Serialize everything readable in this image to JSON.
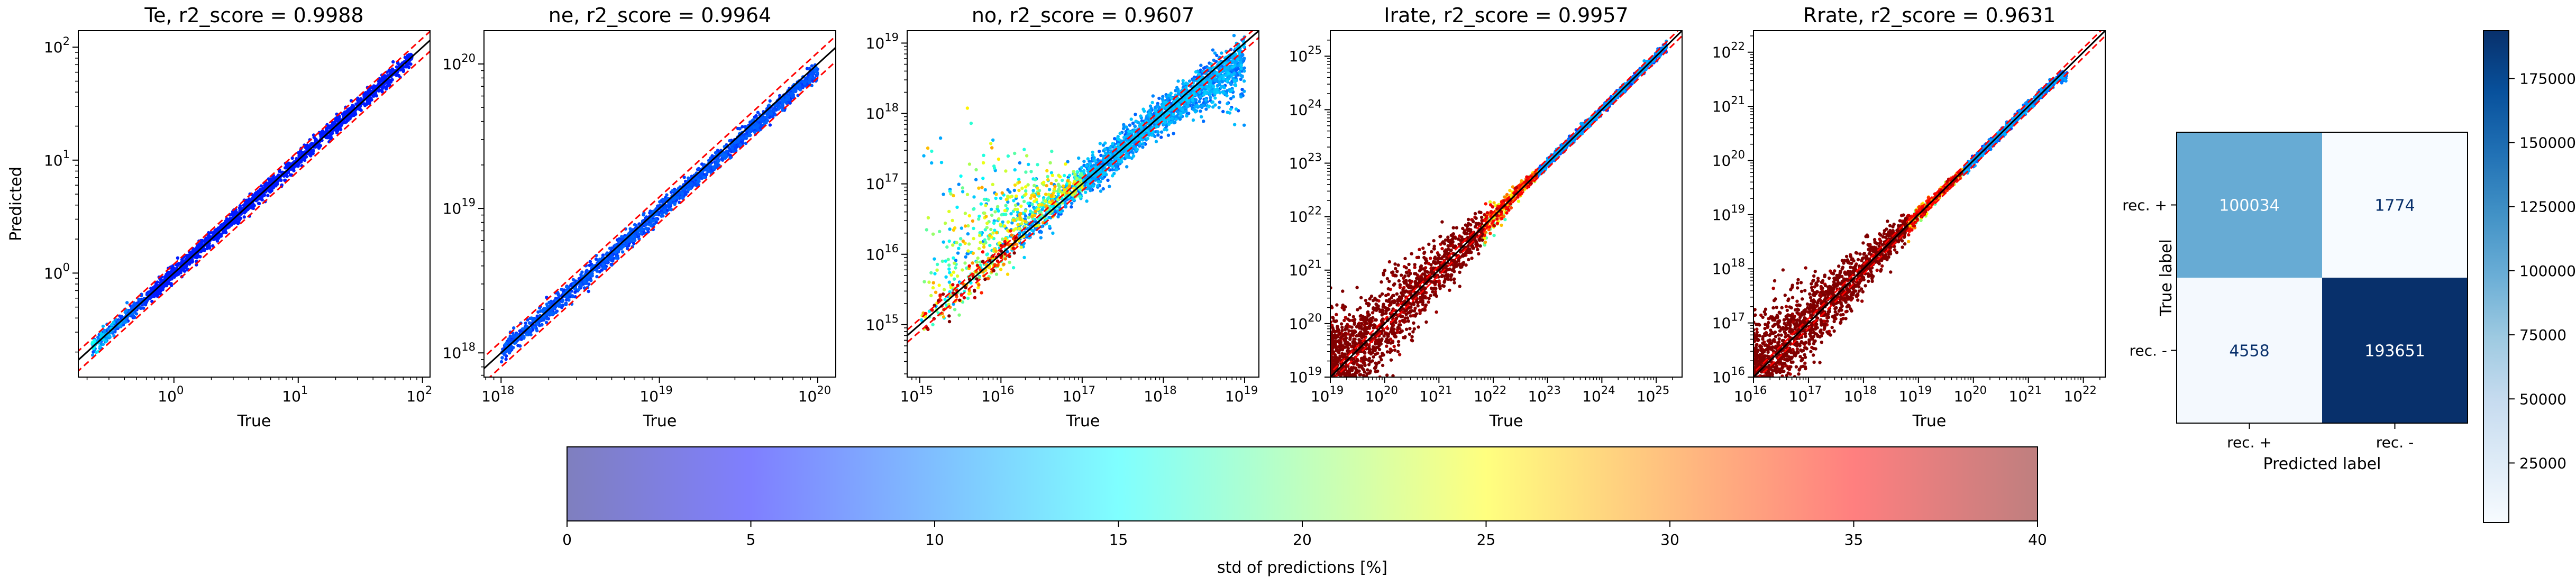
{
  "scatter_panels": [
    {
      "title": "Te, r2_score = 0.9988",
      "xlabel": "True",
      "ylabel": "Predicted",
      "x_tick_labels": [
        {
          "base": "10",
          "exp": "0"
        },
        {
          "base": "10",
          "exp": "1"
        },
        {
          "base": "10",
          "exp": "2"
        }
      ],
      "y_tick_labels": [
        {
          "base": "10",
          "exp": "0"
        },
        {
          "base": "10",
          "exp": "1"
        },
        {
          "base": "10",
          "exp": "2"
        }
      ]
    },
    {
      "title": "ne, r2_score = 0.9964",
      "xlabel": "True",
      "ylabel": "",
      "x_tick_labels": [
        {
          "base": "10",
          "exp": "18"
        },
        {
          "base": "10",
          "exp": "19"
        },
        {
          "base": "10",
          "exp": "20"
        }
      ],
      "y_tick_labels": [
        {
          "base": "10",
          "exp": "18"
        },
        {
          "base": "10",
          "exp": "19"
        },
        {
          "base": "10",
          "exp": "20"
        }
      ]
    },
    {
      "title": "no, r2_score = 0.9607",
      "xlabel": "True",
      "ylabel": "",
      "x_tick_labels": [
        {
          "base": "10",
          "exp": "15"
        },
        {
          "base": "10",
          "exp": "16"
        },
        {
          "base": "10",
          "exp": "17"
        },
        {
          "base": "10",
          "exp": "18"
        },
        {
          "base": "10",
          "exp": "19"
        }
      ],
      "y_tick_labels": [
        {
          "base": "10",
          "exp": "15"
        },
        {
          "base": "10",
          "exp": "16"
        },
        {
          "base": "10",
          "exp": "17"
        },
        {
          "base": "10",
          "exp": "18"
        },
        {
          "base": "10",
          "exp": "19"
        }
      ]
    },
    {
      "title": "Irate, r2_score = 0.9957",
      "xlabel": "True",
      "ylabel": "",
      "x_tick_labels": [
        {
          "base": "10",
          "exp": "19"
        },
        {
          "base": "10",
          "exp": "20"
        },
        {
          "base": "10",
          "exp": "21"
        },
        {
          "base": "10",
          "exp": "22"
        },
        {
          "base": "10",
          "exp": "23"
        },
        {
          "base": "10",
          "exp": "24"
        },
        {
          "base": "10",
          "exp": "25"
        }
      ],
      "y_tick_labels": [
        {
          "base": "10",
          "exp": "19"
        },
        {
          "base": "10",
          "exp": "20"
        },
        {
          "base": "10",
          "exp": "21"
        },
        {
          "base": "10",
          "exp": "22"
        },
        {
          "base": "10",
          "exp": "23"
        },
        {
          "base": "10",
          "exp": "24"
        },
        {
          "base": "10",
          "exp": "25"
        }
      ]
    },
    {
      "title": "Rrate, r2_score = 0.9631",
      "xlabel": "True",
      "ylabel": "",
      "x_tick_labels": [
        {
          "base": "10",
          "exp": "16"
        },
        {
          "base": "10",
          "exp": "17"
        },
        {
          "base": "10",
          "exp": "18"
        },
        {
          "base": "10",
          "exp": "19"
        },
        {
          "base": "10",
          "exp": "20"
        },
        {
          "base": "10",
          "exp": "21"
        },
        {
          "base": "10",
          "exp": "22"
        }
      ],
      "y_tick_labels": [
        {
          "base": "10",
          "exp": "16"
        },
        {
          "base": "10",
          "exp": "17"
        },
        {
          "base": "10",
          "exp": "18"
        },
        {
          "base": "10",
          "exp": "19"
        },
        {
          "base": "10",
          "exp": "20"
        },
        {
          "base": "10",
          "exp": "21"
        },
        {
          "base": "10",
          "exp": "22"
        }
      ]
    }
  ],
  "std_colorbar": {
    "label": "std of predictions [%]",
    "tick_labels": [
      "0",
      "5",
      "10",
      "15",
      "20",
      "25",
      "30",
      "35",
      "40"
    ]
  },
  "confusion_matrix": {
    "xlabel": "Predicted label",
    "ylabel": "True label",
    "row_labels": [
      "rec. +",
      "rec. -"
    ],
    "col_labels": [
      "rec. +",
      "rec. -"
    ],
    "cell_labels": [
      [
        "100034",
        "1774"
      ],
      [
        "4558",
        "193651"
      ]
    ],
    "colorbar_tick_labels": [
      "25000",
      "50000",
      "75000",
      "100000",
      "125000",
      "150000",
      "175000"
    ]
  },
  "chart_data": [
    {
      "type": "scatter",
      "title": "Te, r2_score = 0.9988",
      "xlabel": "True",
      "ylabel": "Predicted",
      "x_scale": "log",
      "y_scale": "log",
      "xlim": [
        0.17,
        115
      ],
      "ylim": [
        0.12,
        140
      ],
      "grid": false,
      "points_summary": {
        "x_range": [
          0.22,
          82
        ],
        "relative_spread": 0.12,
        "color": "low std (blue) throughout, slight cyan/green tint near x=0.2"
      },
      "reference_lines": [
        {
          "style": "solid",
          "color": "#000000",
          "slope": 1.0
        },
        {
          "style": "dashed",
          "color": "#ff0000",
          "slope": 1.2
        },
        {
          "style": "dashed",
          "color": "#ff0000",
          "slope": 0.8
        }
      ]
    },
    {
      "type": "scatter",
      "title": "ne, r2_score = 0.9964",
      "xlabel": "True",
      "ylabel": "",
      "x_scale": "log",
      "y_scale": "log",
      "xlim": [
        7.8e+17,
        1.3e+20
      ],
      "ylim": [
        6.8e+17,
        1.7e+20
      ],
      "grid": false,
      "points_summary": {
        "x_range": [
          1e+18,
          1e+20
        ],
        "relative_spread": 0.1,
        "color": "low std (blue) throughout"
      },
      "reference_lines": [
        {
          "style": "solid",
          "color": "#000000",
          "slope": 1.0
        },
        {
          "style": "dashed",
          "color": "#ff0000",
          "slope": 1.2
        },
        {
          "style": "dashed",
          "color": "#ff0000",
          "slope": 0.8
        }
      ]
    },
    {
      "type": "scatter",
      "title": "no, r2_score = 0.9607",
      "xlabel": "True",
      "ylabel": "",
      "x_scale": "log",
      "y_scale": "log",
      "xlim": [
        700000000000000.0,
        1.5e+19
      ],
      "ylim": [
        180000000000000.0,
        1.5e+19
      ],
      "grid": false,
      "points_summary": {
        "x_range": [
          1000000000000000.0,
          1e+19
        ],
        "notes": "large scatter above the diagonal at low x (up to 1e17), points below diagonal at high x; mixed blue/cyan/yellow/red colors at low x"
      },
      "reference_lines": [
        {
          "style": "solid",
          "color": "#000000",
          "slope": 1.0
        },
        {
          "style": "dashed",
          "color": "#ff0000",
          "slope": 1.2
        },
        {
          "style": "dashed",
          "color": "#ff0000",
          "slope": 0.8
        }
      ]
    },
    {
      "type": "scatter",
      "title": "Irate, r2_score = 0.9957",
      "xlabel": "True",
      "ylabel": "",
      "x_scale": "log",
      "y_scale": "log",
      "xlim": [
        1e+19,
        3e+25
      ],
      "ylim": [
        1e+19,
        3e+25
      ],
      "grid": false,
      "points_summary": {
        "x_range": [
          1e+19,
          1.5e+25
        ],
        "notes": "broad dark-red (high std) cloud below 1e22, tight blue points above 1e23"
      },
      "reference_lines": [
        {
          "style": "solid",
          "color": "#000000",
          "slope": 1.0
        },
        {
          "style": "dashed",
          "color": "#ff0000",
          "slope": 1.2
        },
        {
          "style": "dashed",
          "color": "#ff0000",
          "slope": 0.8
        }
      ]
    },
    {
      "type": "scatter",
      "title": "Rrate, r2_score = 0.9631",
      "xlabel": "True",
      "ylabel": "",
      "x_scale": "log",
      "y_scale": "log",
      "xlim": [
        1e+16,
        2.5e+22
      ],
      "ylim": [
        1e+16,
        2.5e+22
      ],
      "grid": false,
      "points_summary": {
        "x_range": [
          1e+16,
          5e+21
        ],
        "notes": "broad dark-red cloud below 1e19, blue points above 1e20 that flatten near 4e21"
      },
      "reference_lines": [
        {
          "style": "solid",
          "color": "#000000",
          "slope": 1.0
        },
        {
          "style": "dashed",
          "color": "#ff0000",
          "slope": 1.2
        },
        {
          "style": "dashed",
          "color": "#ff0000",
          "slope": 0.8
        }
      ]
    },
    {
      "type": "heatmap",
      "title": "",
      "xlabel": "Predicted label",
      "ylabel": "True label",
      "rows": [
        "rec. +",
        "rec. -"
      ],
      "cols": [
        "rec. +",
        "rec. -"
      ],
      "values": [
        [
          100034,
          1774
        ],
        [
          4558,
          193651
        ]
      ],
      "colormap": "Blues",
      "colorbar_range": [
        1774,
        193651
      ]
    }
  ],
  "colormaps": {
    "std": [
      "#00007f",
      "#0000ff",
      "#007fff",
      "#00ffff",
      "#7fff7f",
      "#ffff00",
      "#ff7f00",
      "#ff0000",
      "#7f0000"
    ],
    "blues": [
      "#f7fbff",
      "#deebf7",
      "#c6dbef",
      "#9ecae1",
      "#6baed6",
      "#4292c6",
      "#2171b5",
      "#08519c",
      "#08306b"
    ]
  }
}
